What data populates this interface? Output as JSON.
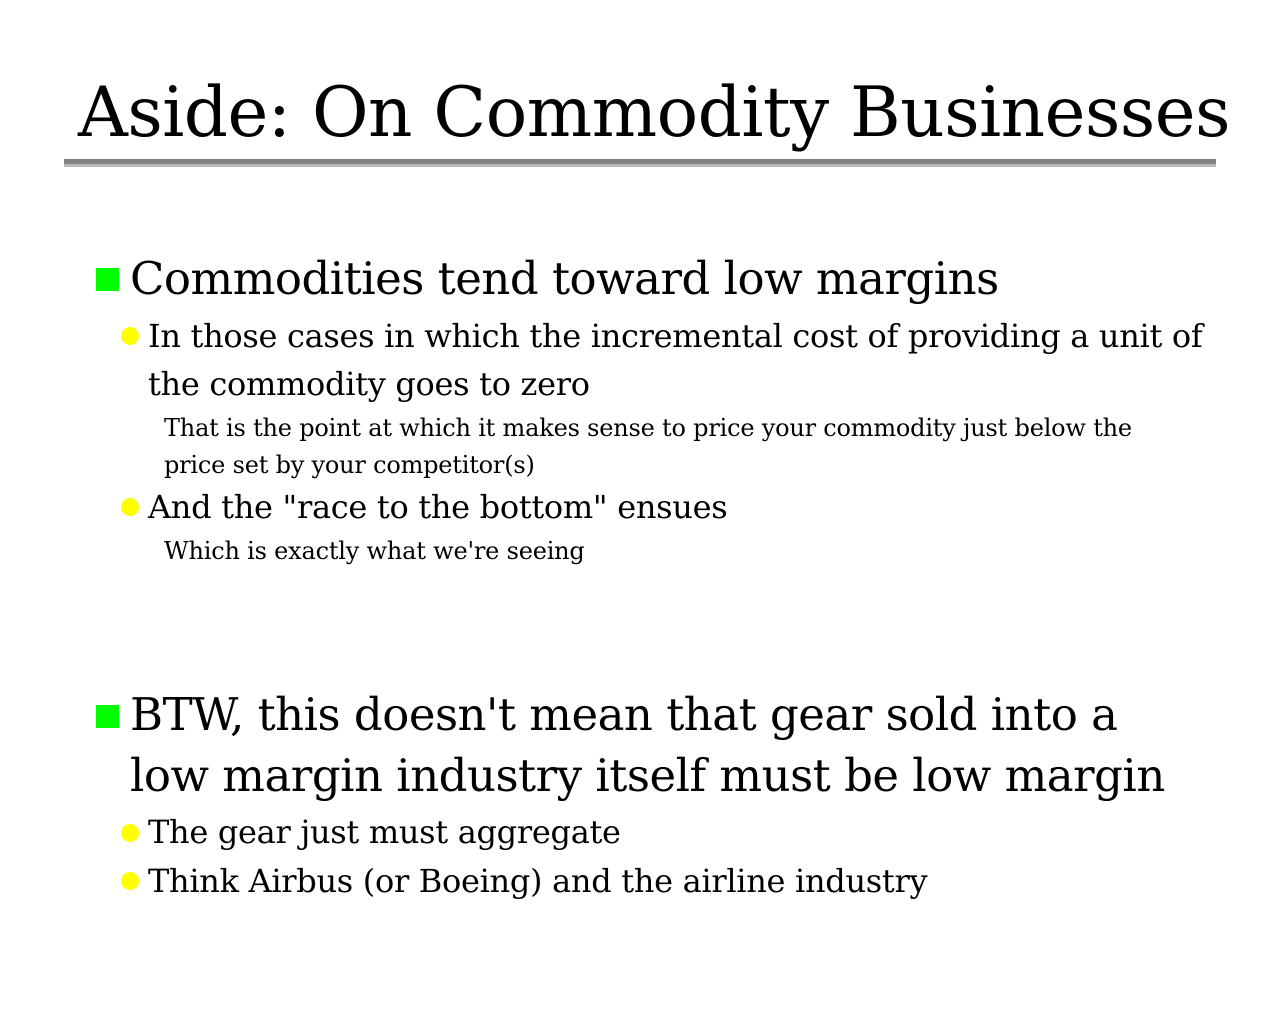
{
  "slide": {
    "title": "Aside: On Commodity Businesses",
    "bullets": [
      {
        "text": "Commodities tend toward low margins",
        "subs": [
          {
            "text": "In those cases in which the incremental cost of providing a unit of the commodity goes to zero",
            "notes": [
              "That is the point at which it makes sense to price your commodity just below the price set by your competitor(s)"
            ]
          },
          {
            "text": "And the \"race to the bottom\" ensues",
            "notes": [
              "Which is exactly what we're seeing"
            ]
          }
        ]
      },
      {
        "text": "BTW, this doesn't mean that gear sold into a low margin industry itself must be low margin",
        "subs": [
          {
            "text": "The gear just must aggregate"
          },
          {
            "text": "Think Airbus (or Boeing) and the airline industry"
          }
        ]
      }
    ]
  },
  "colors": {
    "level1_bullet": "#00ff00",
    "level2_bullet": "#ffff00",
    "title_rule": "#808080"
  },
  "icons": {
    "level1_bullet": "square-bullet-icon",
    "level2_bullet": "circle-bullet-icon"
  }
}
